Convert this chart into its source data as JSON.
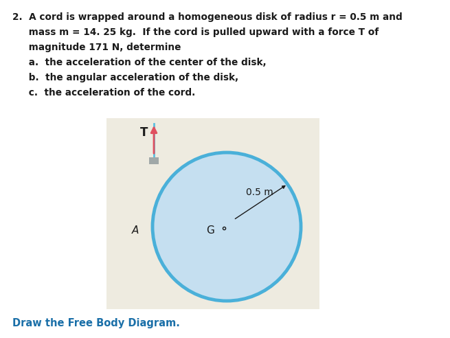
{
  "bg_color": "#ffffff",
  "diagram_bg_color": "#eeebe0",
  "text_color": "#1a1a1a",
  "bottom_text": "Draw the Free Body Diagram.",
  "bottom_text_color": "#1a6fa8",
  "disk_fill_color": "#c5dff0",
  "disk_edge_color": "#4ab0d9",
  "disk_linewidth": 3.5,
  "cord_color": "#5bbfdf",
  "cord_linewidth": 2.0,
  "arrow_color": "#e05060",
  "arrow_linewidth": 2.0,
  "gray_clip_color": "#a0a8a8",
  "font_size_body": 9.8,
  "font_size_diagram": 10,
  "font_size_bottom": 10.5,
  "lines": [
    "2.  A cord is wrapped around a homogeneous disk of radius r = 0.5 m and",
    "     mass m = 14. 25 kg.  If the cord is pulled upward with a force T of",
    "     magnitude 171 N, determine",
    "     a.  the acceleration of the center of the disk,",
    "     b.  the angular acceleration of the disk,",
    "     c.  the acceleration of the cord."
  ]
}
